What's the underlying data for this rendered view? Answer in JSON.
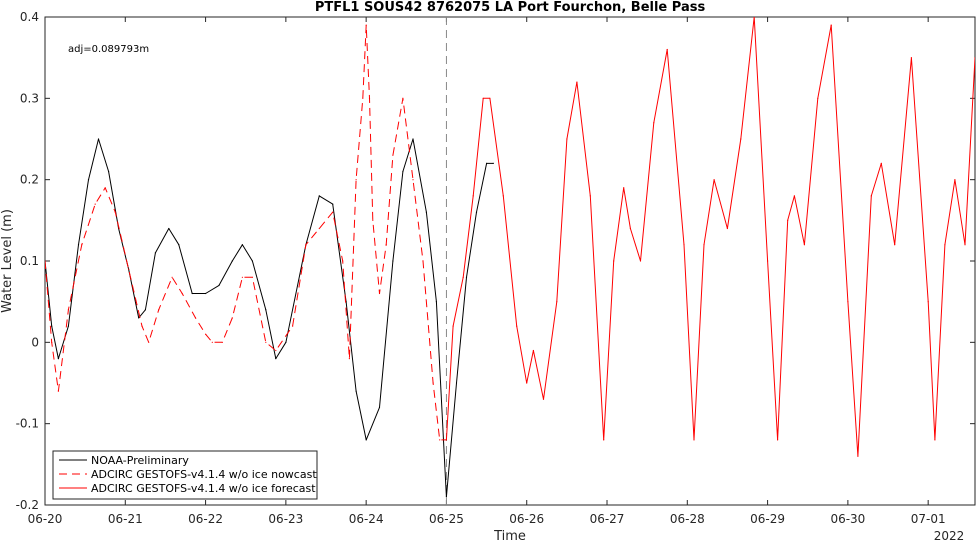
{
  "chart_data": {
    "type": "line",
    "title": "PTFL1 SOUS42 8762075 LA Port Fourchon, Belle Pass",
    "xlabel": "Time",
    "ylabel": "Water Level (m)",
    "annotation": "adj=0.089793m",
    "year_label": "2022",
    "x_tick_labels": [
      "06-20",
      "06-21",
      "06-22",
      "06-23",
      "06-24",
      "06-25",
      "06-26",
      "06-27",
      "06-28",
      "06-29",
      "06-30",
      "07-01"
    ],
    "xlim": [
      "06-20 00:00",
      "07-01 14:00"
    ],
    "ylim": [
      -0.2,
      0.4
    ],
    "y_ticks": [
      -0.2,
      -0.1,
      0,
      0.1,
      0.2,
      0.3,
      0.4
    ],
    "y_tick_labels": [
      "-0.2",
      "-0.1",
      "0",
      "0.1",
      "0.2",
      "0.3",
      "0.4"
    ],
    "nowcast_forecast_boundary": "06-25 00:00",
    "legend_position": "bottom-left",
    "grid": false,
    "series": [
      {
        "name": "NOAA-Preliminary",
        "color": "#000000",
        "style": "solid",
        "x": [
          "06-20 00:00",
          "06-20 02:00",
          "06-20 04:00",
          "06-20 07:00",
          "06-20 10:00",
          "06-20 13:00",
          "06-20 16:00",
          "06-20 19:00",
          "06-20 22:00",
          "06-21 01:00",
          "06-21 04:00",
          "06-21 06:00",
          "06-21 09:00",
          "06-21 13:00",
          "06-21 16:00",
          "06-21 20:00",
          "06-22 00:00",
          "06-22 04:00",
          "06-22 08:00",
          "06-22 11:00",
          "06-22 14:00",
          "06-22 18:00",
          "06-22 21:00",
          "06-23 00:00",
          "06-23 06:00",
          "06-23 10:00",
          "06-23 14:00",
          "06-23 18:00",
          "06-23 21:00",
          "06-24 00:00",
          "06-24 04:00",
          "06-24 08:00",
          "06-24 11:00",
          "06-24 14:00",
          "06-24 18:00",
          "06-24 21:00",
          "06-25 00:00",
          "06-25 03:00",
          "06-25 06:00",
          "06-25 09:00",
          "06-25 12:00",
          "06-25 14:00"
        ],
        "y": [
          0.1,
          0.02,
          -0.02,
          0.02,
          0.12,
          0.2,
          0.25,
          0.21,
          0.14,
          0.09,
          0.03,
          0.04,
          0.11,
          0.14,
          0.12,
          0.06,
          0.06,
          0.07,
          0.1,
          0.12,
          0.1,
          0.04,
          -0.02,
          0.0,
          0.12,
          0.18,
          0.17,
          0.05,
          -0.06,
          -0.12,
          -0.08,
          0.1,
          0.21,
          0.25,
          0.16,
          0.05,
          -0.19,
          -0.05,
          0.08,
          0.16,
          0.22,
          0.22
        ]
      },
      {
        "name": "ADCIRC GESTOFS-v4.1.4 w/o ice nowcast",
        "color": "#ff0000",
        "style": "dashed",
        "x": [
          "06-20 00:00",
          "06-20 02:00",
          "06-20 04:00",
          "06-20 07:00",
          "06-20 11:00",
          "06-20 15:00",
          "06-20 18:00",
          "06-20 21:00",
          "06-21 01:00",
          "06-21 05:00",
          "06-21 07:00",
          "06-21 10:00",
          "06-21 14:00",
          "06-21 17:00",
          "06-21 21:00",
          "06-22 00:00",
          "06-22 02:00",
          "06-22 05:00",
          "06-22 08:00",
          "06-22 11:00",
          "06-22 14:00",
          "06-22 18:00",
          "06-22 21:00",
          "06-23 02:00",
          "06-23 06:00",
          "06-23 10:00",
          "06-23 14:00",
          "06-23 17:00",
          "06-23 19:00",
          "06-23 21:00",
          "06-23 23:00",
          "06-24 00:00",
          "06-24 01:00",
          "06-24 02:00",
          "06-24 04:00",
          "06-24 06:00",
          "06-24 08:00",
          "06-24 11:00",
          "06-24 14:00",
          "06-24 17:00",
          "06-24 20:00",
          "06-24 22:00",
          "06-25 00:00"
        ],
        "y": [
          0.1,
          0.0,
          -0.06,
          0.04,
          0.12,
          0.17,
          0.19,
          0.16,
          0.09,
          0.02,
          0.0,
          0.04,
          0.08,
          0.06,
          0.03,
          0.01,
          0.0,
          0.0,
          0.03,
          0.08,
          0.08,
          0.0,
          -0.01,
          0.02,
          0.12,
          0.14,
          0.16,
          0.1,
          -0.02,
          0.2,
          0.3,
          0.39,
          0.3,
          0.15,
          0.06,
          0.12,
          0.23,
          0.3,
          0.2,
          0.1,
          -0.05,
          -0.12,
          -0.12
        ]
      },
      {
        "name": "ADCIRC GESTOFS-v4.1.4 w/o ice forecast",
        "color": "#ff0000",
        "style": "solid",
        "x": [
          "06-25 00:00",
          "06-25 02:00",
          "06-25 05:00",
          "06-25 08:00",
          "06-25 11:00",
          "06-25 13:00",
          "06-25 17:00",
          "06-25 21:00",
          "06-26 00:00",
          "06-26 02:00",
          "06-26 05:00",
          "06-26 09:00",
          "06-26 12:00",
          "06-26 15:00",
          "06-26 19:00",
          "06-26 23:00",
          "06-27 02:00",
          "06-27 05:00",
          "06-27 07:00",
          "06-27 10:00",
          "06-27 14:00",
          "06-27 18:00",
          "06-27 23:00",
          "06-28 02:00",
          "06-28 05:00",
          "06-28 08:00",
          "06-28 12:00",
          "06-28 16:00",
          "06-28 20:00",
          "06-29 00:00",
          "06-29 03:00",
          "06-29 06:00",
          "06-29 08:00",
          "06-29 11:00",
          "06-29 15:00",
          "06-29 19:00",
          "06-30 00:00",
          "06-30 03:00",
          "06-30 07:00",
          "06-30 10:00",
          "06-30 14:00",
          "06-30 19:00",
          "07-01 00:00",
          "07-01 02:00",
          "07-01 05:00",
          "07-01 08:00",
          "07-01 11:00",
          "07-01 14:00"
        ],
        "y": [
          -0.12,
          0.02,
          0.08,
          0.18,
          0.3,
          0.3,
          0.18,
          0.02,
          -0.05,
          -0.01,
          -0.07,
          0.05,
          0.25,
          0.32,
          0.18,
          -0.12,
          0.1,
          0.19,
          0.14,
          0.1,
          0.27,
          0.36,
          0.12,
          -0.12,
          0.12,
          0.2,
          0.14,
          0.25,
          0.4,
          0.1,
          -0.12,
          0.15,
          0.18,
          0.12,
          0.3,
          0.39,
          0.05,
          -0.14,
          0.18,
          0.22,
          0.12,
          0.35,
          0.05,
          -0.12,
          0.12,
          0.2,
          0.12,
          0.35
        ]
      }
    ]
  }
}
